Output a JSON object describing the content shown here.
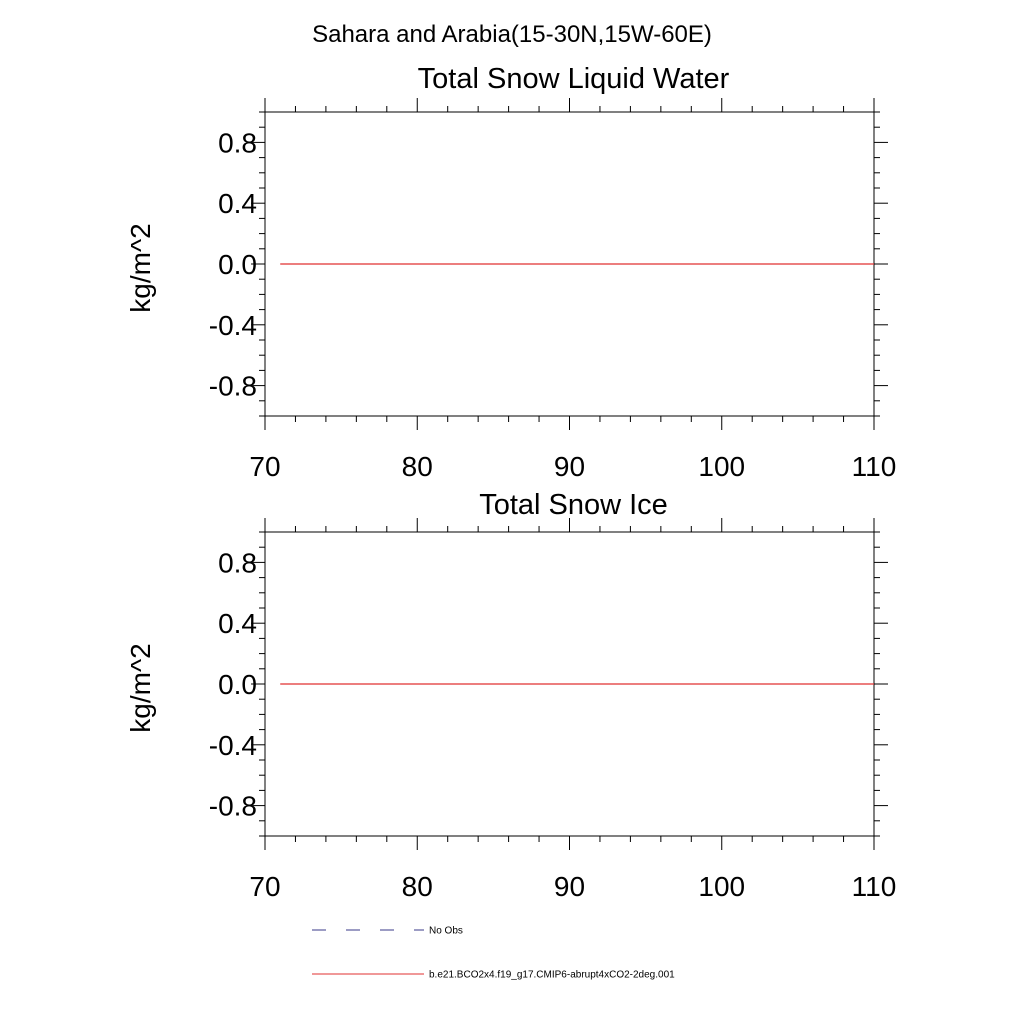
{
  "figure_title": "Sahara and Arabia(15-30N,15W-60E)",
  "legend": [
    {
      "label": "No Obs",
      "color": "#3a3a8a",
      "dash": "dashed"
    },
    {
      "label": "b.e21.BCO2x4.f19_g17.CMIP6-abrupt4xCO2-2deg.001",
      "color": "#e03030",
      "dash": "solid"
    }
  ],
  "chart_data": [
    {
      "type": "line",
      "title": "Total Snow Liquid Water",
      "xlabel": "",
      "ylabel": "kg/m^2",
      "xlim": [
        70,
        110
      ],
      "ylim": [
        -1.0,
        1.0
      ],
      "x_ticks": [
        70,
        80,
        90,
        100,
        110
      ],
      "x_tick_labels": [
        "70",
        "80",
        "90",
        "100",
        "110"
      ],
      "y_ticks": [
        0.8,
        0.4,
        0.0,
        -0.4,
        -0.8
      ],
      "y_tick_labels": [
        "0.8",
        "0.4",
        "0.0",
        "-0.4",
        "-0.8"
      ],
      "grid": false,
      "series": [
        {
          "name": "b.e21.BCO2x4.f19_g17.CMIP6-abrupt4xCO2-2deg.001",
          "color": "#e03030",
          "x": [
            71,
            110
          ],
          "y": [
            0.0,
            0.0
          ]
        }
      ]
    },
    {
      "type": "line",
      "title": "Total Snow Ice",
      "xlabel": "",
      "ylabel": "kg/m^2",
      "xlim": [
        70,
        110
      ],
      "ylim": [
        -1.0,
        1.0
      ],
      "x_ticks": [
        70,
        80,
        90,
        100,
        110
      ],
      "x_tick_labels": [
        "70",
        "80",
        "90",
        "100",
        "110"
      ],
      "y_ticks": [
        0.8,
        0.4,
        0.0,
        -0.4,
        -0.8
      ],
      "y_tick_labels": [
        "0.8",
        "0.4",
        "0.0",
        "-0.4",
        "-0.8"
      ],
      "grid": false,
      "series": [
        {
          "name": "b.e21.BCO2x4.f19_g17.CMIP6-abrupt4xCO2-2deg.001",
          "color": "#e03030",
          "x": [
            71,
            110
          ],
          "y": [
            0.0,
            0.0
          ]
        }
      ]
    }
  ]
}
